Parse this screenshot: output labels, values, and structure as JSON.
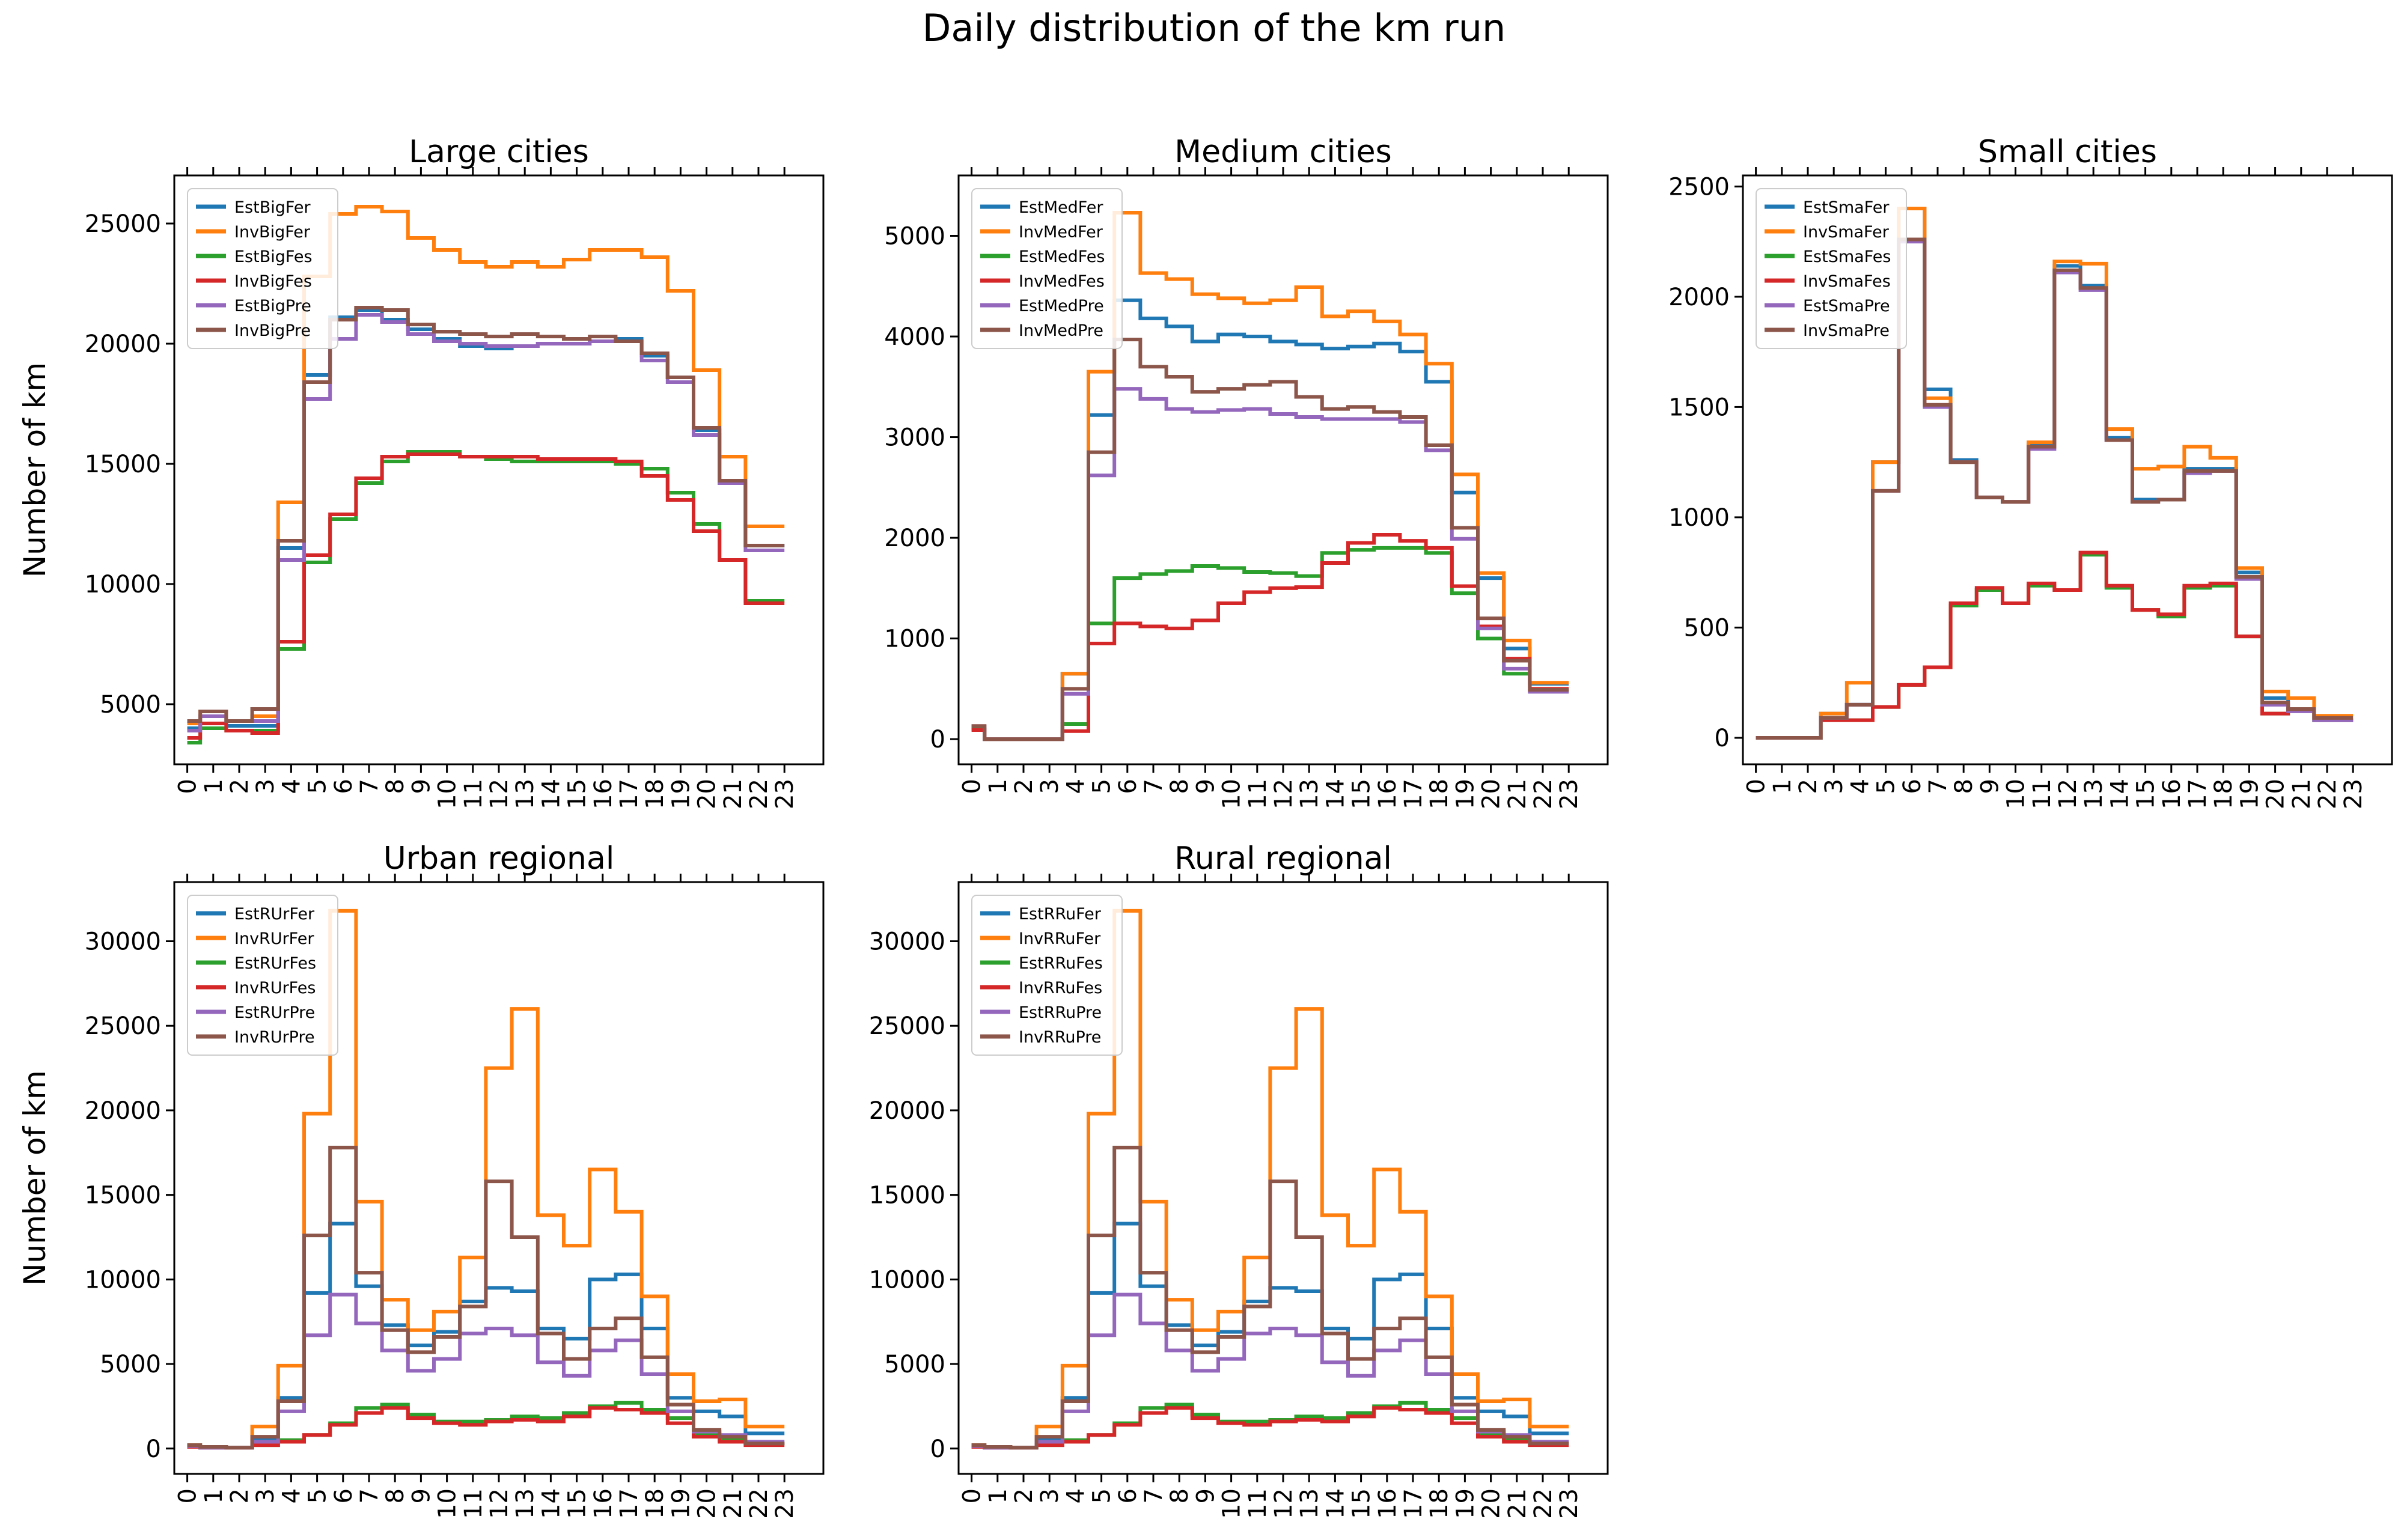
{
  "figure": {
    "title": "Daily distribution of the km run"
  },
  "colors": {
    "EstFer": "#1f77b4",
    "InvFer": "#ff7f0e",
    "EstFes": "#2ca02c",
    "InvFes": "#d62728",
    "EstPre": "#9467bd",
    "InvPre": "#8c564b"
  },
  "chart_data": [
    {
      "type": "line",
      "title": "Large cities",
      "xlabel": "",
      "ylabel": "Number of km",
      "x": [
        0,
        1,
        2,
        3,
        4,
        5,
        6,
        7,
        8,
        9,
        10,
        11,
        12,
        13,
        14,
        15,
        16,
        17,
        18,
        19,
        20,
        21,
        22,
        23
      ],
      "ylim": [
        2500,
        27000
      ],
      "yticks": [
        5000,
        10000,
        15000,
        20000,
        25000
      ],
      "legend": "top-left",
      "series": [
        {
          "name": "EstBigFer",
          "color": "#1f77b4",
          "values": [
            4000,
            4500,
            4100,
            4100,
            11500,
            18700,
            21100,
            21400,
            21000,
            20600,
            20200,
            19900,
            19800,
            19900,
            20000,
            20000,
            20100,
            20200,
            19500,
            18600,
            16400,
            14200,
            11600,
            11600
          ]
        },
        {
          "name": "InvBigFer",
          "color": "#ff7f0e",
          "values": [
            4200,
            4700,
            4300,
            4500,
            13400,
            22800,
            25400,
            25700,
            25500,
            24400,
            23900,
            23400,
            23200,
            23400,
            23200,
            23500,
            23900,
            23900,
            23600,
            22200,
            18900,
            15300,
            12400,
            12400
          ]
        },
        {
          "name": "EstBigFes",
          "color": "#2ca02c",
          "values": [
            3400,
            4000,
            3900,
            3900,
            7300,
            10900,
            12700,
            14200,
            15100,
            15500,
            15500,
            15300,
            15200,
            15100,
            15100,
            15100,
            15100,
            15000,
            14800,
            13800,
            12500,
            11000,
            9300,
            9300
          ]
        },
        {
          "name": "InvBigFes",
          "color": "#d62728",
          "values": [
            3600,
            4200,
            3900,
            3800,
            7600,
            11200,
            12900,
            14400,
            15300,
            15400,
            15400,
            15300,
            15300,
            15300,
            15200,
            15200,
            15200,
            15100,
            14500,
            13500,
            12200,
            11000,
            9200,
            9200
          ]
        },
        {
          "name": "EstBigPre",
          "color": "#9467bd",
          "values": [
            3900,
            4500,
            4300,
            4300,
            11000,
            17700,
            20200,
            21200,
            20900,
            20400,
            20100,
            20000,
            19900,
            19900,
            20000,
            20000,
            20100,
            20100,
            19300,
            18400,
            16200,
            14200,
            11400,
            11400
          ]
        },
        {
          "name": "InvBigPre",
          "color": "#8c564b",
          "values": [
            4300,
            4700,
            4300,
            4800,
            11800,
            18400,
            21000,
            21500,
            21400,
            20800,
            20500,
            20400,
            20300,
            20400,
            20300,
            20200,
            20300,
            20100,
            19600,
            18600,
            16500,
            14300,
            11600,
            11600
          ]
        }
      ]
    },
    {
      "type": "line",
      "title": "Medium cities",
      "xlabel": "",
      "ylabel": "",
      "x": [
        0,
        1,
        2,
        3,
        4,
        5,
        6,
        7,
        8,
        9,
        10,
        11,
        12,
        13,
        14,
        15,
        16,
        17,
        18,
        19,
        20,
        21,
        22,
        23
      ],
      "ylim": [
        -250,
        5600
      ],
      "yticks": [
        0,
        1000,
        2000,
        3000,
        4000,
        5000
      ],
      "legend": "top-left",
      "series": [
        {
          "name": "EstMedFer",
          "color": "#1f77b4",
          "values": [
            120,
            0,
            0,
            0,
            650,
            3220,
            4360,
            4180,
            4100,
            3950,
            4020,
            4000,
            3950,
            3920,
            3880,
            3900,
            3930,
            3850,
            3550,
            2450,
            1600,
            900,
            550,
            550
          ]
        },
        {
          "name": "InvMedFer",
          "color": "#ff7f0e",
          "values": [
            130,
            0,
            0,
            0,
            650,
            3650,
            5230,
            4630,
            4570,
            4420,
            4380,
            4330,
            4360,
            4490,
            4200,
            4250,
            4150,
            4020,
            3730,
            2630,
            1650,
            980,
            560,
            560
          ]
        },
        {
          "name": "EstMedFes",
          "color": "#2ca02c",
          "values": [
            100,
            0,
            0,
            0,
            150,
            1150,
            1600,
            1640,
            1670,
            1720,
            1700,
            1660,
            1650,
            1620,
            1850,
            1880,
            1900,
            1900,
            1850,
            1450,
            1000,
            650,
            480,
            480
          ]
        },
        {
          "name": "InvMedFes",
          "color": "#d62728",
          "values": [
            90,
            0,
            0,
            0,
            80,
            950,
            1150,
            1120,
            1100,
            1180,
            1350,
            1460,
            1500,
            1510,
            1750,
            1950,
            2030,
            1970,
            1900,
            1520,
            1120,
            800,
            500,
            500
          ]
        },
        {
          "name": "EstMedPre",
          "color": "#9467bd",
          "values": [
            130,
            0,
            0,
            0,
            450,
            2620,
            3480,
            3380,
            3280,
            3250,
            3270,
            3280,
            3230,
            3200,
            3180,
            3180,
            3180,
            3150,
            2870,
            1990,
            1100,
            700,
            470,
            470
          ]
        },
        {
          "name": "InvMedPre",
          "color": "#8c564b",
          "values": [
            130,
            0,
            0,
            0,
            500,
            2850,
            3970,
            3700,
            3600,
            3450,
            3480,
            3520,
            3550,
            3400,
            3280,
            3300,
            3250,
            3200,
            2920,
            2100,
            1200,
            780,
            490,
            490
          ]
        }
      ]
    },
    {
      "type": "line",
      "title": "Small cities",
      "xlabel": "",
      "ylabel": "",
      "x": [
        0,
        1,
        2,
        3,
        4,
        5,
        6,
        7,
        8,
        9,
        10,
        11,
        12,
        13,
        14,
        15,
        16,
        17,
        18,
        19,
        20,
        21,
        22,
        23
      ],
      "ylim": [
        -120,
        2550
      ],
      "yticks": [
        0,
        500,
        1000,
        1500,
        2000,
        2500
      ],
      "legend": "top-left",
      "series": [
        {
          "name": "EstSmaFer",
          "color": "#1f77b4",
          "values": [
            0,
            0,
            0,
            110,
            150,
            1250,
            2400,
            1580,
            1260,
            1090,
            1070,
            1330,
            2140,
            2050,
            1360,
            1080,
            1080,
            1220,
            1220,
            750,
            180,
            130,
            80,
            80
          ]
        },
        {
          "name": "InvSmaFer",
          "color": "#ff7f0e",
          "values": [
            0,
            0,
            0,
            110,
            250,
            1250,
            2400,
            1540,
            1250,
            1090,
            1070,
            1340,
            2160,
            2150,
            1400,
            1220,
            1230,
            1320,
            1270,
            770,
            210,
            180,
            100,
            100
          ]
        },
        {
          "name": "EstSmaFes",
          "color": "#2ca02c",
          "values": [
            0,
            0,
            0,
            80,
            80,
            140,
            240,
            320,
            600,
            670,
            610,
            690,
            670,
            830,
            680,
            580,
            550,
            680,
            690,
            460,
            110,
            130,
            80,
            80
          ]
        },
        {
          "name": "InvSmaFes",
          "color": "#d62728",
          "values": [
            0,
            0,
            0,
            80,
            80,
            140,
            240,
            320,
            610,
            680,
            610,
            700,
            670,
            840,
            690,
            580,
            560,
            690,
            700,
            460,
            110,
            130,
            80,
            80
          ]
        },
        {
          "name": "EstSmaPre",
          "color": "#9467bd",
          "values": [
            0,
            0,
            0,
            90,
            150,
            1120,
            2250,
            1500,
            1250,
            1090,
            1070,
            1310,
            2110,
            2030,
            1350,
            1070,
            1080,
            1200,
            1210,
            720,
            150,
            120,
            80,
            80
          ]
        },
        {
          "name": "InvSmaPre",
          "color": "#8c564b",
          "values": [
            0,
            0,
            0,
            90,
            150,
            1120,
            2260,
            1510,
            1250,
            1090,
            1070,
            1320,
            2120,
            2040,
            1350,
            1070,
            1080,
            1210,
            1210,
            730,
            160,
            130,
            90,
            90
          ]
        }
      ]
    },
    {
      "type": "line",
      "title": "Urban regional",
      "xlabel": "",
      "ylabel": "Number of km",
      "x": [
        0,
        1,
        2,
        3,
        4,
        5,
        6,
        7,
        8,
        9,
        10,
        11,
        12,
        13,
        14,
        15,
        16,
        17,
        18,
        19,
        20,
        21,
        22,
        23
      ],
      "ylim": [
        -1500,
        33500
      ],
      "yticks": [
        0,
        5000,
        10000,
        15000,
        20000,
        25000,
        30000
      ],
      "legend": "top-left",
      "series": [
        {
          "name": "EstRUrFer",
          "color": "#1f77b4",
          "values": [
            200,
            100,
            50,
            500,
            3000,
            9200,
            13300,
            9600,
            7300,
            6100,
            6900,
            8700,
            9500,
            9300,
            7100,
            6500,
            10000,
            10300,
            7100,
            3000,
            2200,
            1900,
            900,
            900
          ]
        },
        {
          "name": "InvRUrFer",
          "color": "#ff7f0e",
          "values": [
            200,
            100,
            50,
            1300,
            4900,
            19800,
            31800,
            14600,
            8800,
            7000,
            8100,
            11300,
            22500,
            26000,
            13800,
            12000,
            16500,
            14000,
            9000,
            4400,
            2800,
            2900,
            1300,
            1300
          ]
        },
        {
          "name": "EstRUrFes",
          "color": "#2ca02c",
          "values": [
            100,
            50,
            50,
            200,
            500,
            800,
            1500,
            2400,
            2600,
            2000,
            1600,
            1600,
            1700,
            1900,
            1800,
            2100,
            2500,
            2700,
            2300,
            1800,
            900,
            500,
            300,
            300
          ]
        },
        {
          "name": "InvRUrFes",
          "color": "#d62728",
          "values": [
            100,
            50,
            50,
            200,
            400,
            800,
            1400,
            2100,
            2400,
            1800,
            1500,
            1400,
            1600,
            1700,
            1600,
            1900,
            2400,
            2300,
            2100,
            1500,
            700,
            400,
            200,
            200
          ]
        },
        {
          "name": "EstRUrPre",
          "color": "#9467bd",
          "values": [
            150,
            50,
            50,
            400,
            2200,
            6700,
            9100,
            7400,
            5800,
            4600,
            5300,
            6800,
            7100,
            6700,
            5100,
            4300,
            5800,
            6400,
            4400,
            2200,
            1000,
            800,
            400,
            400
          ]
        },
        {
          "name": "InvRUrPre",
          "color": "#8c564b",
          "values": [
            200,
            100,
            50,
            700,
            2800,
            12600,
            17800,
            10400,
            7000,
            5700,
            6600,
            8400,
            15800,
            12500,
            6800,
            5300,
            7100,
            7700,
            5400,
            2600,
            1100,
            700,
            300,
            300
          ]
        }
      ]
    },
    {
      "type": "line",
      "title": "Rural regional",
      "xlabel": "",
      "ylabel": "",
      "x": [
        0,
        1,
        2,
        3,
        4,
        5,
        6,
        7,
        8,
        9,
        10,
        11,
        12,
        13,
        14,
        15,
        16,
        17,
        18,
        19,
        20,
        21,
        22,
        23
      ],
      "ylim": [
        -1500,
        33500
      ],
      "yticks": [
        0,
        5000,
        10000,
        15000,
        20000,
        25000,
        30000
      ],
      "legend": "top-left",
      "series": [
        {
          "name": "EstRRuFer",
          "color": "#1f77b4",
          "values": [
            200,
            100,
            50,
            500,
            3000,
            9200,
            13300,
            9600,
            7300,
            6100,
            6900,
            8700,
            9500,
            9300,
            7100,
            6500,
            10000,
            10300,
            7100,
            3000,
            2200,
            1900,
            900,
            900
          ]
        },
        {
          "name": "InvRRuFer",
          "color": "#ff7f0e",
          "values": [
            200,
            100,
            50,
            1300,
            4900,
            19800,
            31800,
            14600,
            8800,
            7000,
            8100,
            11300,
            22500,
            26000,
            13800,
            12000,
            16500,
            14000,
            9000,
            4400,
            2800,
            2900,
            1300,
            1300
          ]
        },
        {
          "name": "EstRRuFes",
          "color": "#2ca02c",
          "values": [
            100,
            50,
            50,
            200,
            500,
            800,
            1500,
            2400,
            2600,
            2000,
            1600,
            1600,
            1700,
            1900,
            1800,
            2100,
            2500,
            2700,
            2300,
            1800,
            900,
            500,
            300,
            300
          ]
        },
        {
          "name": "InvRRuFes",
          "color": "#d62728",
          "values": [
            100,
            50,
            50,
            200,
            400,
            800,
            1400,
            2100,
            2400,
            1800,
            1500,
            1400,
            1600,
            1700,
            1600,
            1900,
            2400,
            2300,
            2100,
            1500,
            700,
            400,
            200,
            200
          ]
        },
        {
          "name": "EstRRuPre",
          "color": "#9467bd",
          "values": [
            150,
            50,
            50,
            400,
            2200,
            6700,
            9100,
            7400,
            5800,
            4600,
            5300,
            6800,
            7100,
            6700,
            5100,
            4300,
            5800,
            6400,
            4400,
            2200,
            1000,
            800,
            400,
            400
          ]
        },
        {
          "name": "InvRRuPre",
          "color": "#8c564b",
          "values": [
            200,
            100,
            50,
            700,
            2800,
            12600,
            17800,
            10400,
            7000,
            5700,
            6600,
            8400,
            15800,
            12500,
            6800,
            5300,
            7100,
            7700,
            5400,
            2600,
            1100,
            700,
            300,
            300
          ]
        }
      ]
    }
  ]
}
